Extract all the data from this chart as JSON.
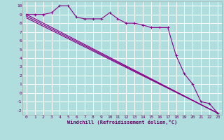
{
  "xlabel": "Windchill (Refroidissement éolien,°C)",
  "bg_color": "#b0dede",
  "grid_color": "#ffffff",
  "line_color": "#880088",
  "xlim": [
    -0.5,
    23.5
  ],
  "ylim": [
    -2.5,
    10.5
  ],
  "yticks": [
    -2,
    -1,
    0,
    1,
    2,
    3,
    4,
    5,
    6,
    7,
    8,
    9,
    10
  ],
  "xticks": [
    0,
    1,
    2,
    3,
    4,
    5,
    6,
    7,
    8,
    9,
    10,
    11,
    12,
    13,
    14,
    15,
    16,
    17,
    18,
    19,
    20,
    21,
    22,
    23
  ],
  "line1_x": [
    0,
    1,
    2,
    3,
    4,
    5,
    6,
    7,
    8,
    9,
    10,
    11,
    12,
    13,
    14,
    15,
    16,
    17,
    18,
    19,
    20,
    21,
    22,
    23
  ],
  "line1_y": [
    9.0,
    9.0,
    9.0,
    9.2,
    10.0,
    10.0,
    8.7,
    8.5,
    8.5,
    8.5,
    9.2,
    8.5,
    8.0,
    8.0,
    7.8,
    7.5,
    7.5,
    7.5,
    4.3,
    2.2,
    1.0,
    -1.0,
    -1.2,
    -2.3
  ],
  "line2_x": [
    0,
    23
  ],
  "line2_y": [
    9.0,
    -2.3
  ],
  "line3_x": [
    0,
    23
  ],
  "line3_y": [
    8.8,
    -2.3
  ],
  "line4_x": [
    0,
    23
  ],
  "line4_y": [
    8.6,
    -2.3
  ]
}
